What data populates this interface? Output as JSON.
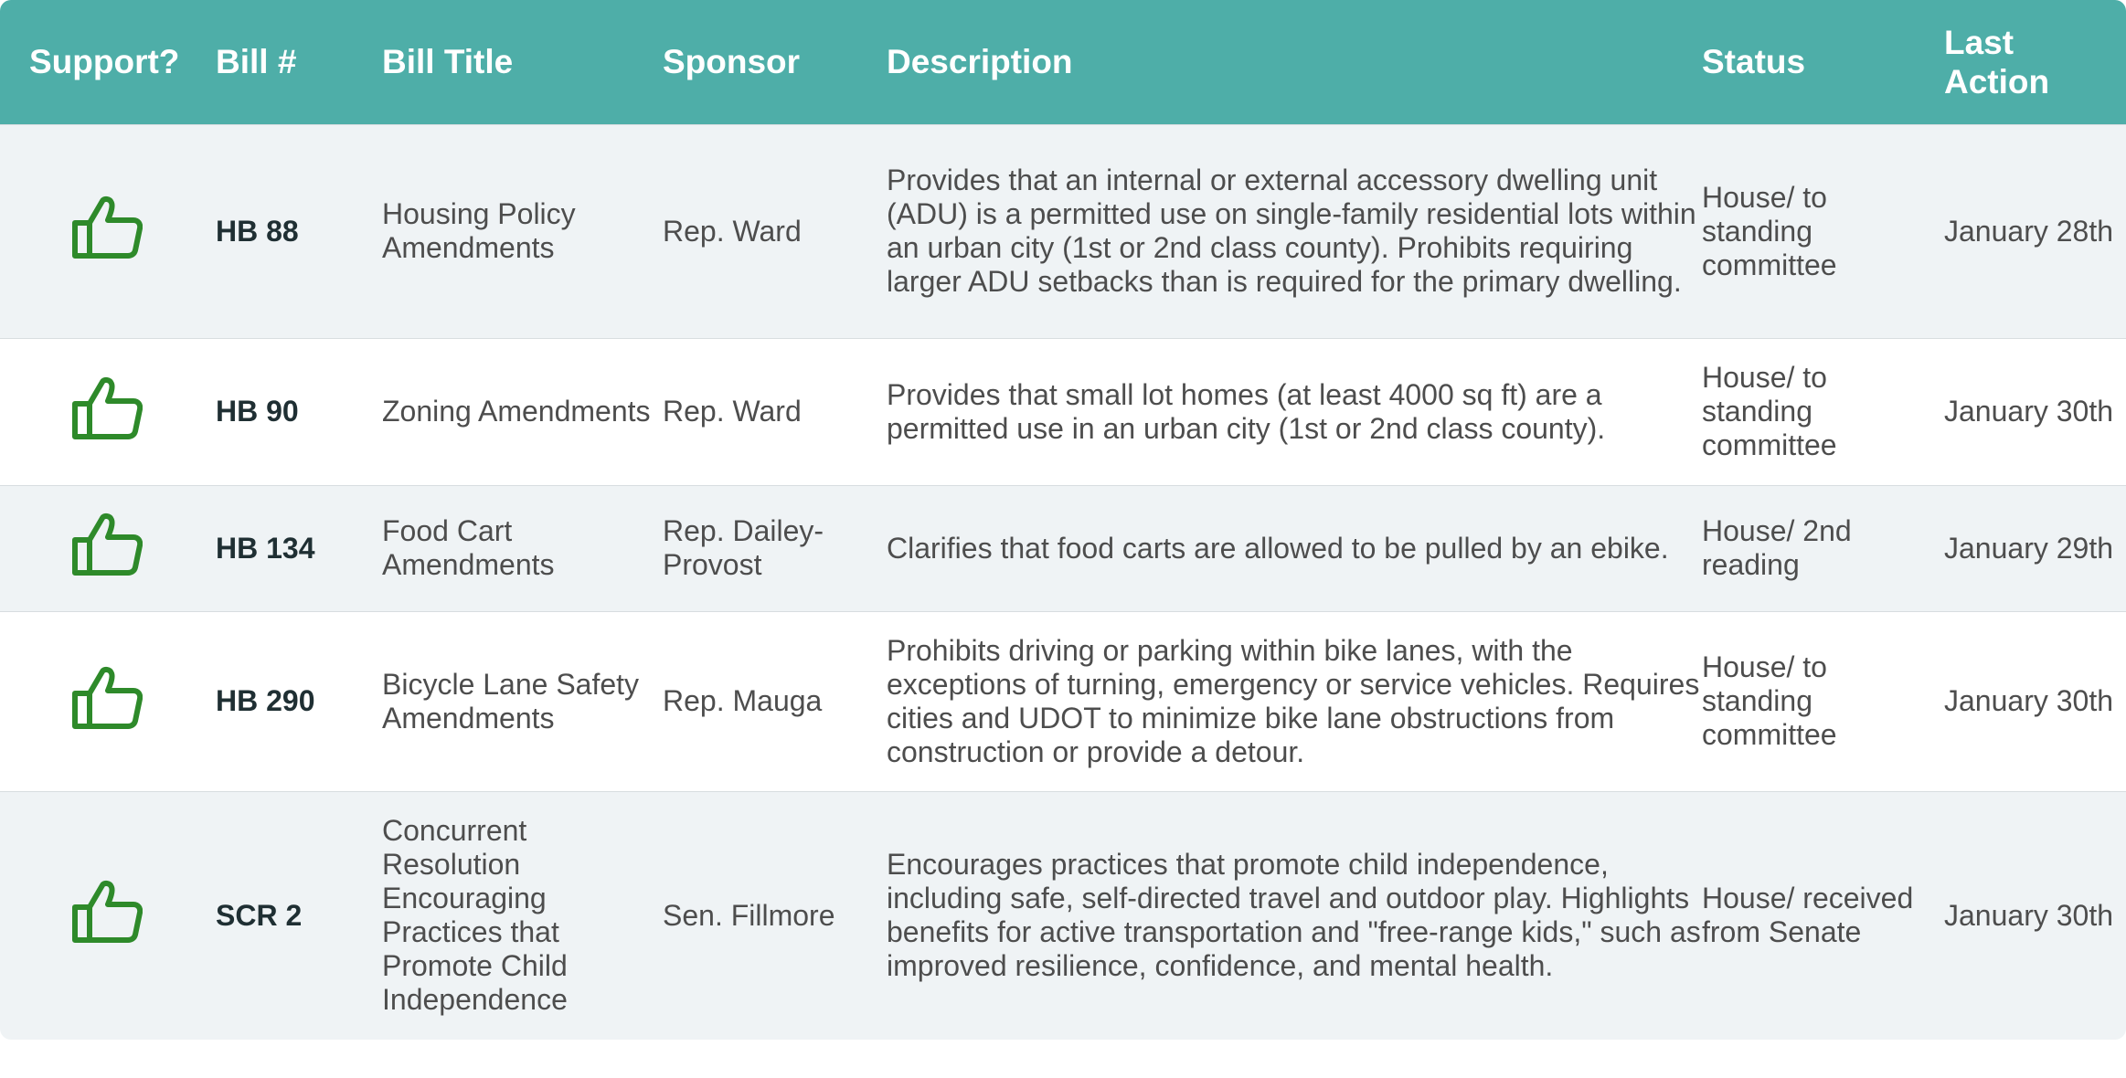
{
  "table": {
    "headers": {
      "support": "Support?",
      "bill_num": "Bill #",
      "bill_title": "Bill Title",
      "sponsor": "Sponsor",
      "description": "Description",
      "status": "Status",
      "last_action_line1": "Last",
      "last_action_line2": "Action"
    },
    "header_color": "#4eaea8",
    "support_icon": "thumbs-up-icon",
    "support_icon_color": "#2e8a2a",
    "rows": [
      {
        "bill_num": "HB 88",
        "title": "Housing Policy Amendments",
        "sponsor": "Rep. Ward",
        "description": "Provides that an internal or external accessory dwelling unit (ADU) is a permitted use on single-family residential lots within an urban city (1st or 2nd class county). Prohibits requiring larger ADU setbacks than is required for the primary dwelling.",
        "status": "House/ to standing committee",
        "last_action": "January 28th"
      },
      {
        "bill_num": "HB 90",
        "title": "Zoning Amendments",
        "sponsor": "Rep. Ward",
        "description": "Provides that small lot homes (at least 4000 sq ft) are a permitted use in an urban city (1st or 2nd class county).",
        "status": "House/ to standing committee",
        "last_action": "January 30th"
      },
      {
        "bill_num": "HB 134",
        "title": "Food Cart Amendments",
        "sponsor": "Rep. Dailey-Provost",
        "description": "Clarifies that food carts are allowed to be pulled by an ebike.",
        "status": "House/ 2nd reading",
        "last_action": "January 29th"
      },
      {
        "bill_num": "HB 290",
        "title": "Bicycle Lane Safety Amendments",
        "sponsor": "Rep. Mauga",
        "description": "Prohibits driving or parking within bike lanes, with the exceptions of turning, emergency or service vehicles. Requires cities and UDOT to minimize bike lane obstructions from construction or provide a detour.",
        "status": "House/ to standing committee",
        "last_action": "January 30th"
      },
      {
        "bill_num": "SCR 2",
        "title": "Concurrent Resolution Encouraging Practices that Promote Child Independence",
        "sponsor": "Sen. Fillmore",
        "description": "Encourages practices that promote child independence, including safe, self-directed travel and outdoor play. Highlights benefits for active transportation and \"free-range kids,\" such as improved resilience, confidence, and mental health.",
        "status": "House/ received from Senate",
        "last_action": "January 30th"
      }
    ]
  }
}
